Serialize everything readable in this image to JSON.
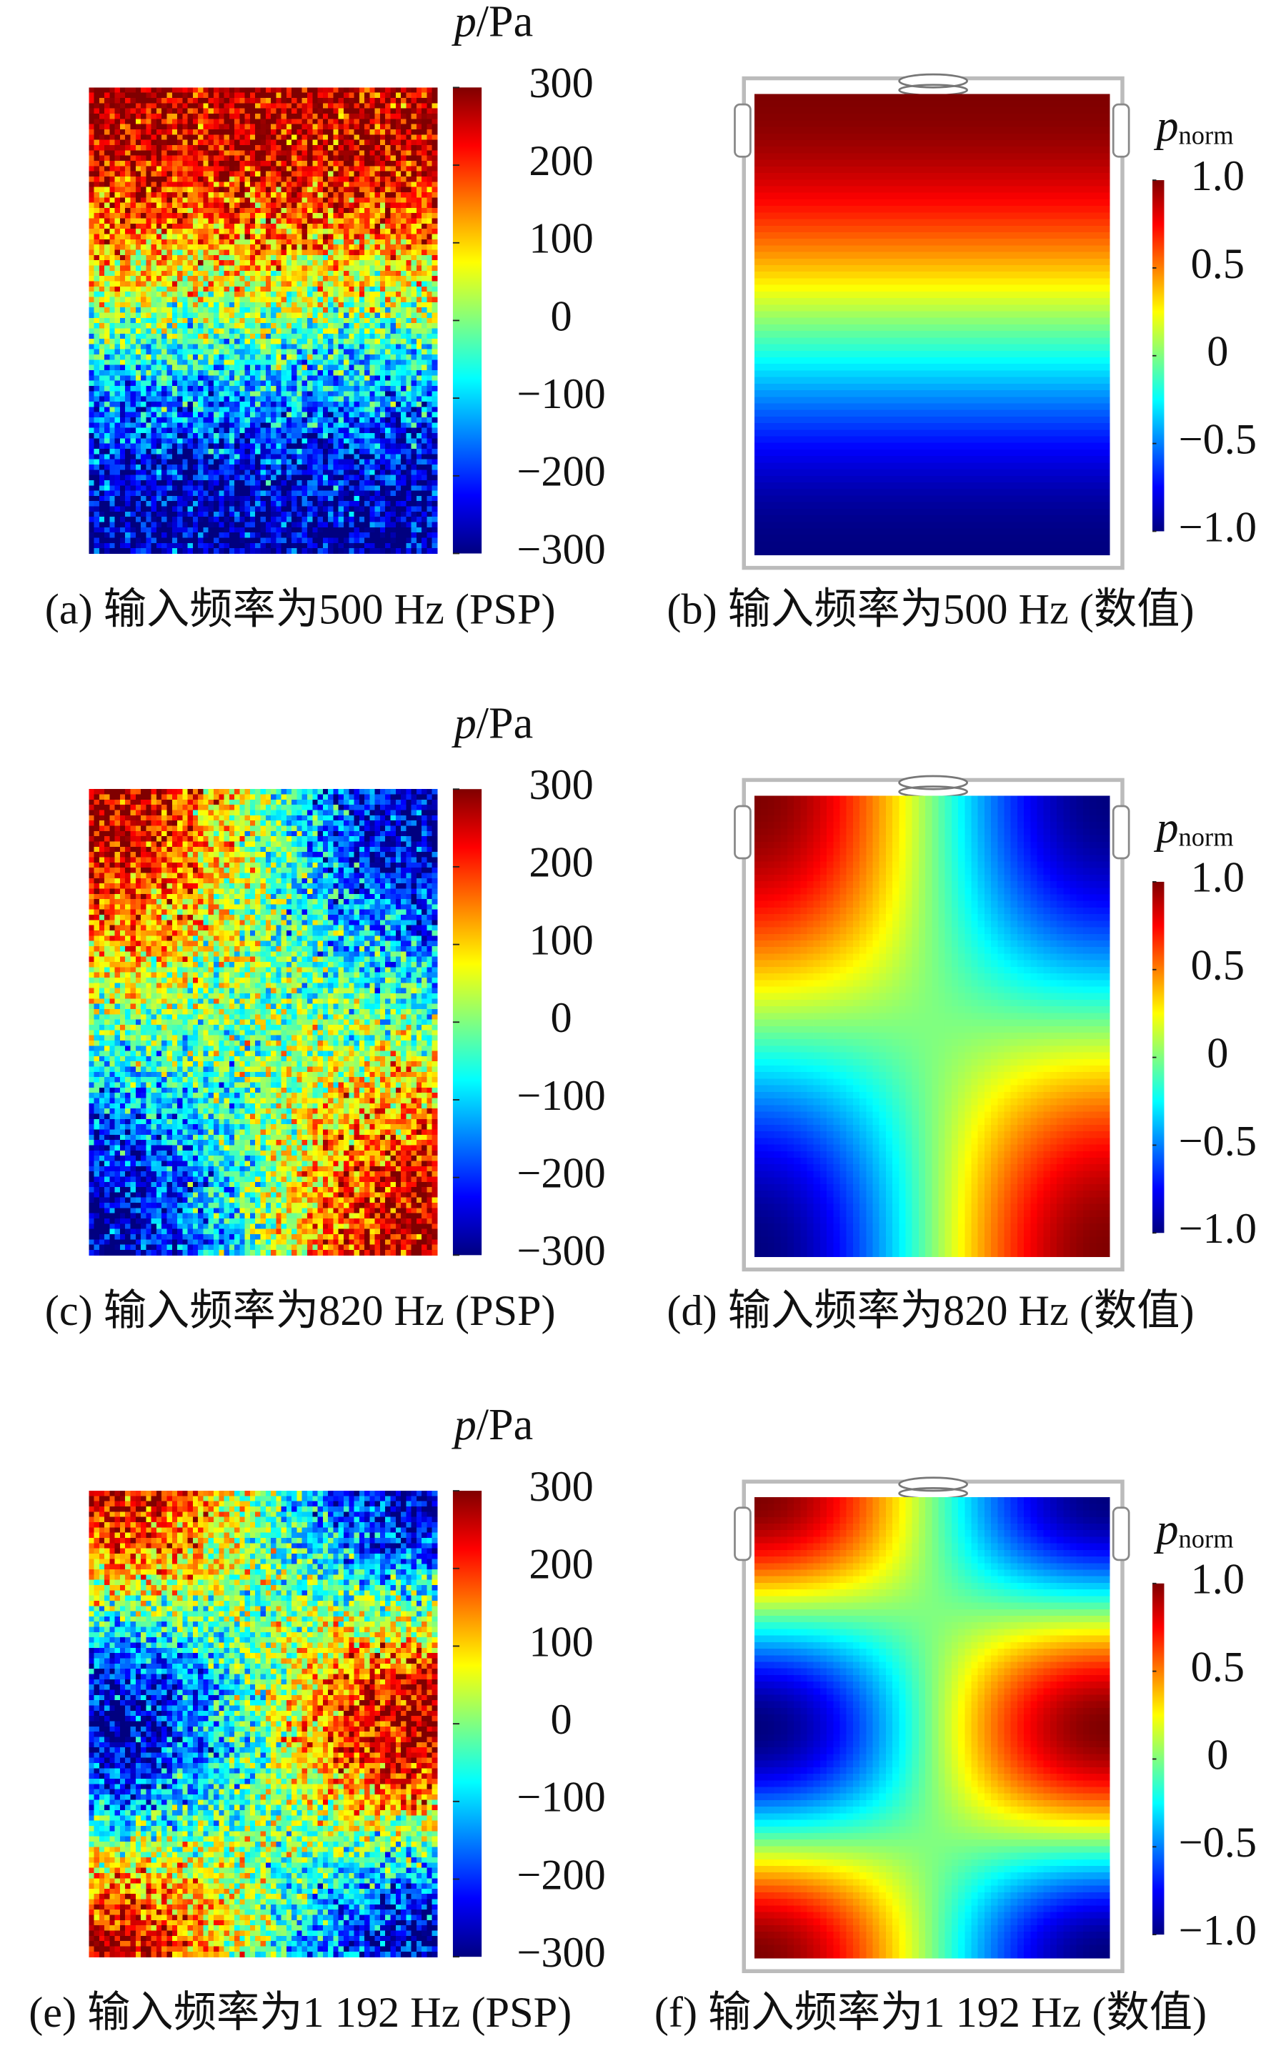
{
  "chart_data": [
    {
      "type": "heatmap",
      "caption": "(a) 输入频率为500 Hz (PSP)",
      "colorbar_label": {
        "symbol": "p",
        "unit": "/Pa"
      },
      "clim": [
        -300,
        300
      ],
      "cticks": [
        300,
        200,
        100,
        0,
        {
          "value": -100,
          "label": "−100"
        },
        {
          "value": -200,
          "label": "−200"
        },
        {
          "value": -300,
          "label": "−300"
        }
      ]
    },
    {
      "type": "heatmap",
      "caption": "(b) 输入频率为500 Hz (数值)",
      "colorbar_label": {
        "symbol": "p",
        "subscript": "norm"
      },
      "clim": [
        -1,
        1
      ],
      "cticks": [
        {
          "value": 1,
          "label": "1.0"
        },
        0.5,
        0,
        {
          "value": -0.5,
          "label": "−0.5"
        },
        {
          "value": -1,
          "label": "−1.0"
        }
      ]
    },
    {
      "type": "heatmap",
      "caption": "(c) 输入频率为820 Hz (PSP)",
      "colorbar_label": {
        "symbol": "p",
        "unit": "/Pa"
      },
      "clim": [
        -300,
        300
      ],
      "cticks": [
        300,
        200,
        100,
        0,
        {
          "value": -100,
          "label": "−100"
        },
        {
          "value": -200,
          "label": "−200"
        },
        {
          "value": -300,
          "label": "−300"
        }
      ]
    },
    {
      "type": "heatmap",
      "caption": "(d) 输入频率为820 Hz (数值)",
      "colorbar_label": {
        "symbol": "p",
        "subscript": "norm"
      },
      "clim": [
        -1,
        1
      ],
      "cticks": [
        {
          "value": 1,
          "label": "1.0"
        },
        0.5,
        0,
        {
          "value": -0.5,
          "label": "−0.5"
        },
        {
          "value": -1,
          "label": "−1.0"
        }
      ]
    },
    {
      "type": "heatmap",
      "caption": "(e) 输入频率为1 192 Hz (PSP)",
      "colorbar_label": {
        "symbol": "p",
        "unit": "/Pa"
      },
      "clim": [
        -300,
        300
      ],
      "cticks": [
        300,
        200,
        100,
        0,
        {
          "value": -100,
          "label": "−100"
        },
        {
          "value": -200,
          "label": "−200"
        },
        {
          "value": -300,
          "label": "−300"
        }
      ]
    },
    {
      "type": "heatmap",
      "caption": "(f) 输入频率为1 192 Hz (数值)",
      "colorbar_label": {
        "symbol": "p",
        "subscript": "norm"
      },
      "clim": [
        -1,
        1
      ],
      "cticks": [
        {
          "value": 1,
          "label": "1.0"
        },
        0.5,
        0,
        {
          "value": -0.5,
          "label": "−0.5"
        },
        {
          "value": -1,
          "label": "−1.0"
        }
      ]
    }
  ]
}
